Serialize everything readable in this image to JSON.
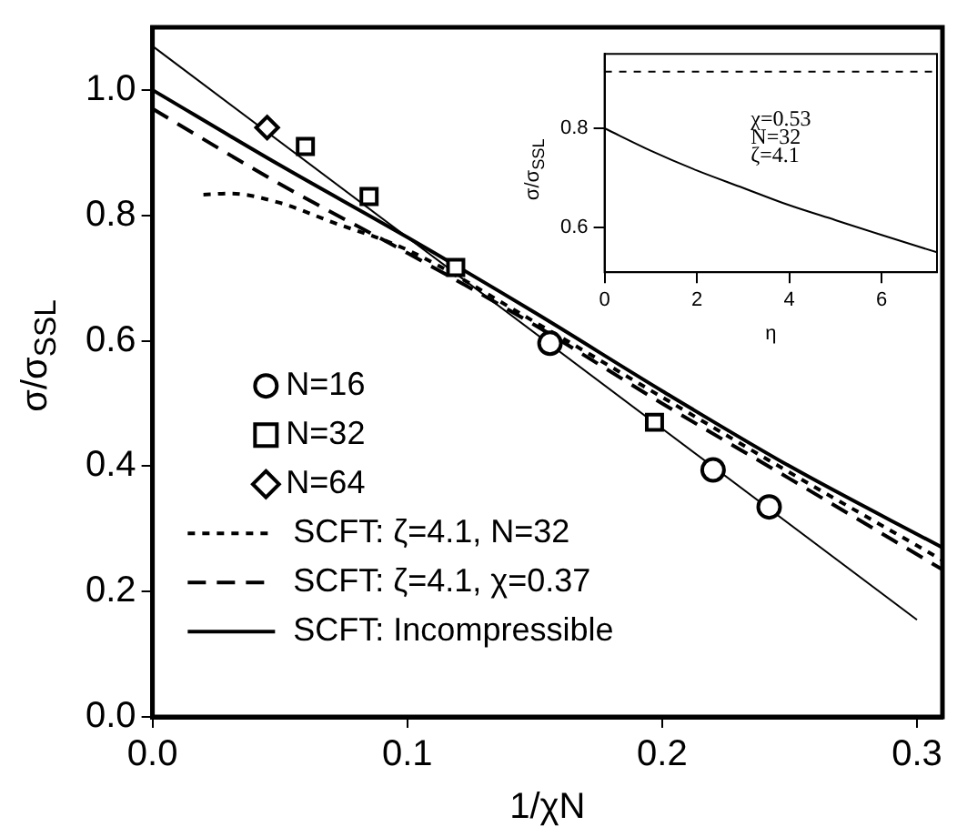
{
  "chart_data": [
    {
      "type": "scatter",
      "xlabel": "1/χN",
      "ylabel": "σ/σ$_{SSL}$",
      "xlim": [
        0,
        0.31
      ],
      "xticks": [
        {
          "value": 0,
          "label": "0.0"
        },
        0.1,
        0.2,
        0.3
      ],
      "ylim": [
        0,
        1.1
      ],
      "yticks": [
        {
          "value": 0,
          "label": "0.0"
        },
        0.2,
        0.4,
        0.6,
        0.8,
        {
          "value": 1,
          "label": "1.0"
        }
      ],
      "legend": "left",
      "series": [
        {
          "name": "N=16",
          "marker": "circle",
          "color": "#000000",
          "x": [
            0.156,
            0.22,
            0.242
          ],
          "values": [
            0.596,
            0.394,
            0.335
          ]
        },
        {
          "name": "N=32",
          "marker": "square",
          "color": "#000000",
          "x": [
            0.06,
            0.085,
            0.119,
            0.197
          ],
          "values": [
            0.91,
            0.83,
            0.717,
            0.47
          ]
        },
        {
          "name": "N=64",
          "marker": "diamond",
          "color": "#000000",
          "x": [
            0.045
          ],
          "values": [
            0.94
          ]
        },
        {
          "name": "SCFT: ζ=4.1, N=32",
          "type": "line",
          "marker": "none",
          "line_style": "dotted",
          "color": "#000000",
          "x": [
            0.02,
            0.03,
            0.05,
            0.07,
            0.1,
            0.15,
            0.2,
            0.25,
            0.31
          ],
          "values": [
            0.833,
            0.835,
            0.82,
            0.79,
            0.745,
            0.63,
            0.51,
            0.39,
            0.25
          ]
        },
        {
          "name": "SCFT: ζ=4.1, χ=0.37",
          "type": "line",
          "marker": "none",
          "line_style": "dashed",
          "color": "#000000",
          "x": [
            0,
            0.05,
            0.1,
            0.15,
            0.2,
            0.25,
            0.31
          ],
          "values": [
            0.97,
            0.85,
            0.74,
            0.625,
            0.5,
            0.38,
            0.235
          ]
        },
        {
          "name": "SCFT: Incompressible",
          "type": "line",
          "marker": "none",
          "line_style": "solid",
          "color": "#000000",
          "x": [
            0,
            0.05,
            0.1,
            0.15,
            0.2,
            0.25,
            0.31
          ],
          "values": [
            1.0,
            0.88,
            0.765,
            0.645,
            0.52,
            0.4,
            0.27
          ]
        },
        {
          "type": "line",
          "marker": "none",
          "line_style": "solid",
          "color": "#000000",
          "x": [
            0,
            0.3
          ],
          "values": [
            1.07,
            0.155
          ]
        }
      ]
    },
    {
      "type": "line",
      "xlabel": "η",
      "ylabel": "σ/σ$_{SSL}$",
      "xlim": [
        0,
        7.2
      ],
      "xticks": [
        0,
        2,
        4,
        6
      ],
      "ylim": [
        0.51,
        0.95
      ],
      "yticks": [
        0.6,
        0.8
      ],
      "annotations": [
        "χ=0.53",
        "N=32",
        "ζ=4.1"
      ],
      "series": [
        {
          "line_style": "dotted",
          "color": "#000000",
          "x": [
            0,
            7.2
          ],
          "values": [
            0.914,
            0.914
          ]
        },
        {
          "line_style": "solid",
          "color": "#000000",
          "x": [
            0,
            1,
            2,
            3,
            4,
            5,
            6,
            7.2
          ],
          "values": [
            0.8,
            0.755,
            0.715,
            0.68,
            0.645,
            0.615,
            0.585,
            0.55
          ]
        }
      ]
    }
  ]
}
